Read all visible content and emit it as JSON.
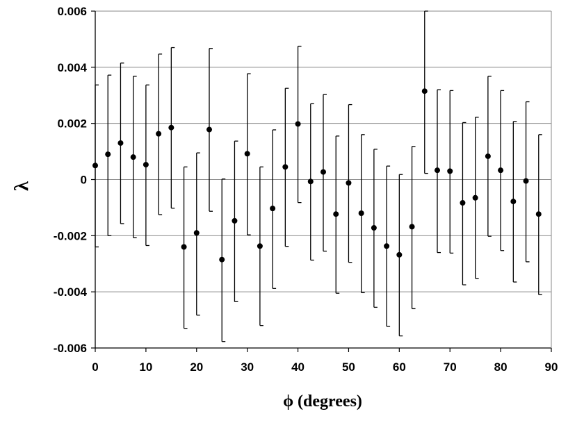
{
  "chart_data": {
    "type": "scatter",
    "title": "",
    "xlabel": "ϕ (degrees)",
    "ylabel": "λ",
    "xlim": [
      0,
      90
    ],
    "ylim": [
      -0.006,
      0.006
    ],
    "x_ticks": [
      "0",
      "10",
      "20",
      "30",
      "40",
      "50",
      "60",
      "70",
      "80",
      "90"
    ],
    "y_ticks": [
      "-0.006",
      "-0.004",
      "-0.002",
      "0",
      "0.002",
      "0.004",
      "0.006"
    ],
    "grid": "horizontal",
    "legend": "none",
    "series": [
      {
        "x": [
          0,
          2.5,
          5,
          7.5,
          10,
          12.5,
          15,
          17.5,
          20,
          22.5,
          25,
          27.5,
          30,
          32.5,
          35,
          37.5,
          40,
          42.5,
          45,
          47.5,
          50,
          52.5,
          55,
          57.5,
          60,
          62.5,
          65,
          67.5,
          70,
          72.5,
          75,
          77.5,
          80,
          82.5,
          85,
          87.5
        ],
        "y": [
          0.0005,
          0.0009,
          0.0013,
          0.0008,
          0.00053,
          0.00163,
          0.00185,
          -0.0024,
          -0.0019,
          0.00178,
          -0.00285,
          -0.00147,
          0.00092,
          -0.00237,
          -0.00103,
          0.00045,
          0.00198,
          -7e-05,
          0.00027,
          -0.00123,
          -0.00012,
          -0.0012,
          -0.00172,
          -0.00237,
          -0.00268,
          -0.00168,
          0.00315,
          0.00033,
          0.0003,
          -0.00083,
          -0.00065,
          0.00083,
          0.00033,
          -0.00078,
          -5e-05,
          -0.00123
        ],
        "low": [
          -0.0024,
          -0.002,
          -0.00157,
          -0.00207,
          -0.00235,
          -0.00125,
          -0.00102,
          -0.0053,
          -0.00483,
          -0.00113,
          -0.00577,
          -0.00435,
          -0.00197,
          -0.0052,
          -0.00388,
          -0.00238,
          -0.00082,
          -0.00287,
          -0.00255,
          -0.00405,
          -0.00295,
          -0.00403,
          -0.00455,
          -0.00523,
          -0.00557,
          -0.0046,
          0.00022,
          -0.0026,
          -0.00262,
          -0.00375,
          -0.00352,
          -0.00202,
          -0.00253,
          -0.00365,
          -0.00293,
          -0.0041
        ],
        "high": [
          0.00337,
          0.00372,
          0.00415,
          0.00368,
          0.00337,
          0.00447,
          0.0047,
          0.00045,
          0.00095,
          0.00467,
          2e-05,
          0.00137,
          0.00377,
          0.00045,
          0.00177,
          0.00325,
          0.00475,
          0.0027,
          0.00303,
          0.00155,
          0.00267,
          0.0016,
          0.00108,
          0.00048,
          0.00018,
          0.00118,
          0.006,
          0.0032,
          0.00317,
          0.00203,
          0.00222,
          0.00368,
          0.00317,
          0.00207,
          0.00277,
          0.0016
        ]
      }
    ]
  }
}
